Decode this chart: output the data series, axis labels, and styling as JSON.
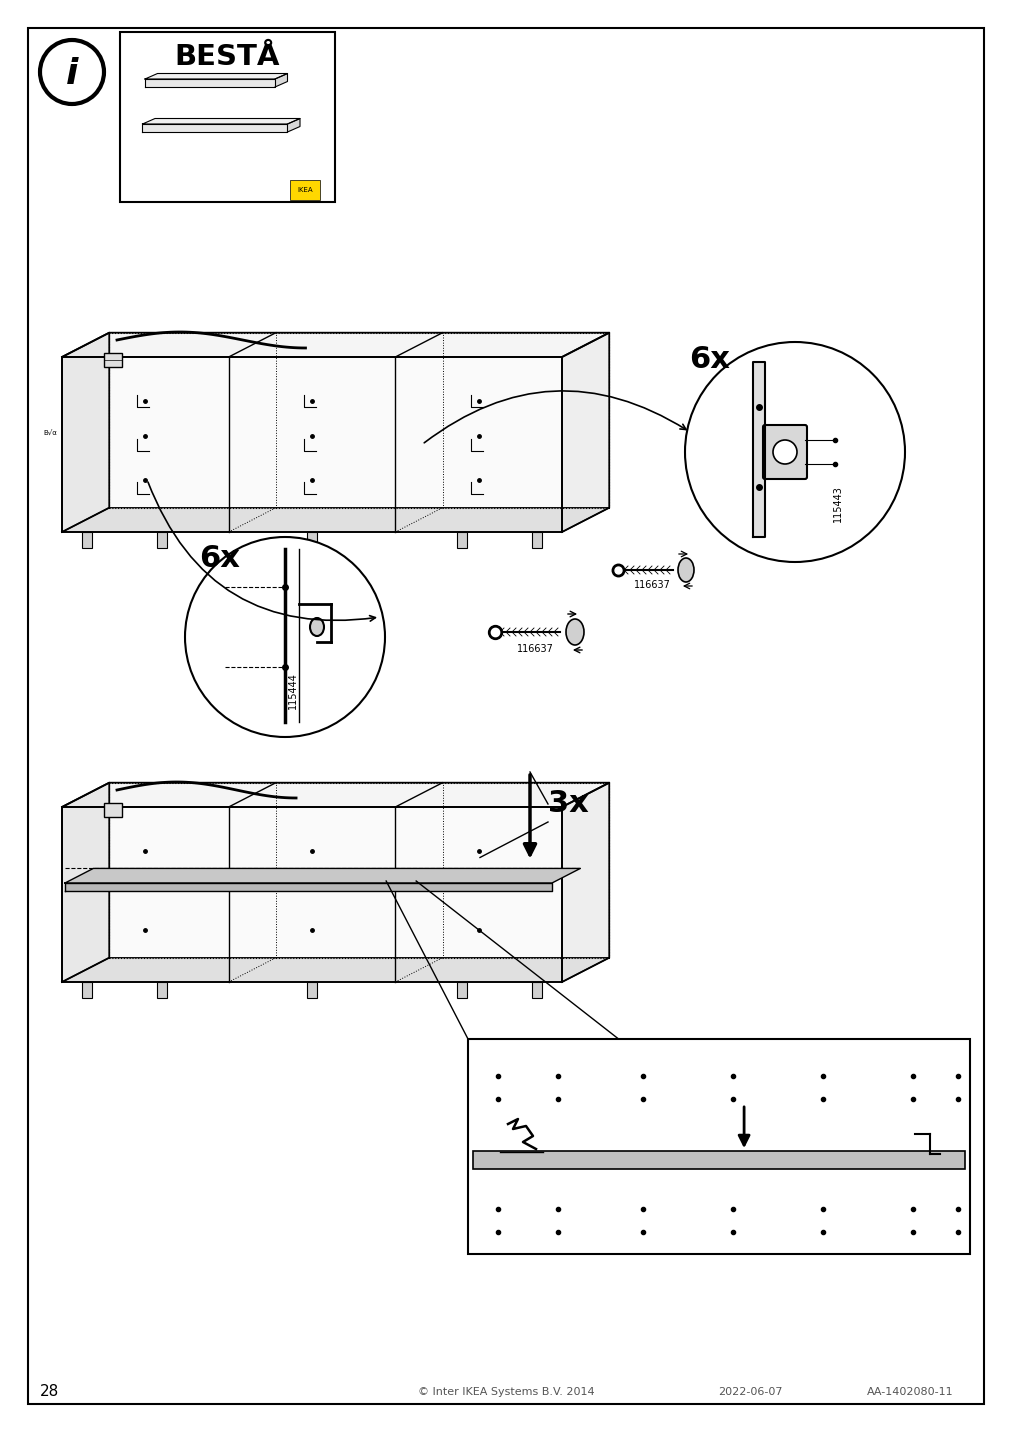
{
  "page_number": "28",
  "footer_text": "© Inter IKEA Systems B.V. 2014",
  "footer_date": "2022-06-07",
  "footer_code": "AA-1402080-11",
  "title": "BESTÅ",
  "bg_color": "#ffffff",
  "border_color": "#000000",
  "part_115444": "115444",
  "part_116637": "116637",
  "part_115443": "115443",
  "qty_6x": "6x",
  "qty_3x": "3x"
}
